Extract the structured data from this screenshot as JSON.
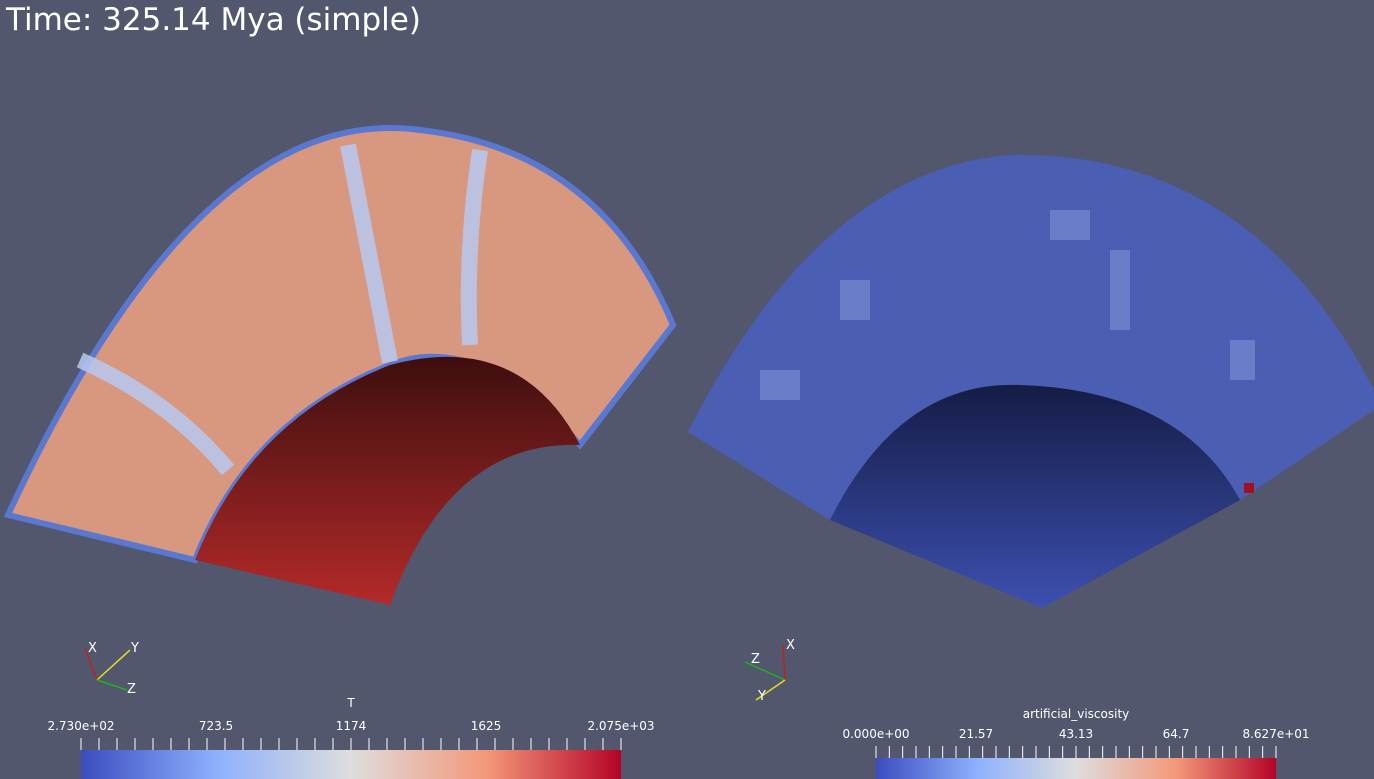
{
  "title": "Time: 325.14 Mya (simple)",
  "left_view": {
    "axes": [
      "X",
      "Y",
      "Z"
    ],
    "colorbar": {
      "title": "T",
      "labels": [
        "2.730e+02",
        "723.5",
        "1174",
        "1625",
        "2.075e+03"
      ]
    }
  },
  "right_view": {
    "axes": [
      "Z",
      "X",
      "Y"
    ],
    "colorbar": {
      "title": "artificial_viscosity",
      "labels": [
        "0.000e+00",
        "21.57",
        "43.13",
        "64.7",
        "8.627e+01"
      ]
    }
  }
}
